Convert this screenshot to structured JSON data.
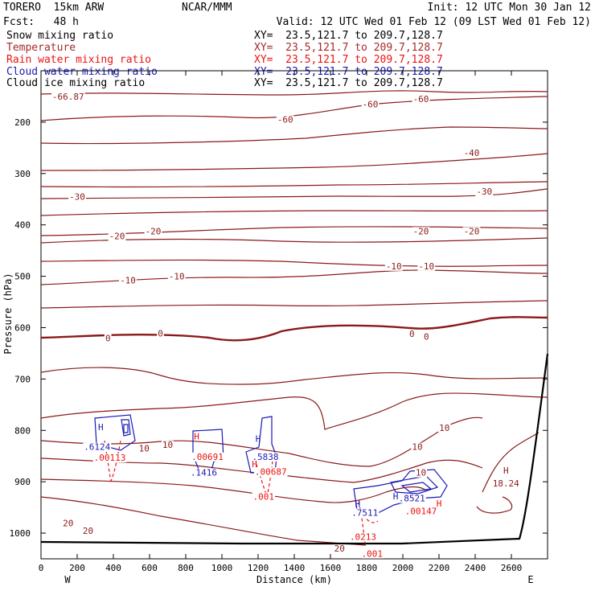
{
  "header": {
    "model": "TORERO  15km ARW",
    "center": "NCAR/MMM",
    "init": "Init: 12 UTC Mon 30 Jan 12",
    "fcst": "Fcst:   48 h",
    "valid": "Valid: 12 UTC Wed 01 Feb 12 (09 LST Wed 01 Feb 12)"
  },
  "fields": [
    {
      "label": "Snow mixing ratio",
      "xy": "XY=  23.5,121.7 to 209.7,128.7",
      "color": "#000000"
    },
    {
      "label": "Temperature",
      "xy": "XY=  23.5,121.7 to 209.7,128.7",
      "color": "#a52a2a"
    },
    {
      "label": "Rain water mixing ratio",
      "xy": "XY=  23.5,121.7 to 209.7,128.7",
      "color": "#ee1111"
    },
    {
      "label": "Cloud water mixing ratio",
      "xy": "XY=  23.5,121.7 to 209.7,128.7",
      "color": "#1a1ab4"
    },
    {
      "label": "Cloud ice mixing ratio",
      "xy": "XY=  23.5,121.7 to 209.7,128.7",
      "color": "#000000"
    }
  ],
  "chart_data": {
    "type": "contour",
    "xlabel": "Distance (km)",
    "ylabel": "Pressure (hPa)",
    "xlim": [
      0,
      2800
    ],
    "ylim": [
      1050,
      100
    ],
    "x_ticks": [
      0,
      200,
      400,
      600,
      800,
      1000,
      1200,
      1400,
      1600,
      1800,
      2000,
      2200,
      2400,
      2600
    ],
    "y_ticks": [
      200,
      300,
      400,
      500,
      600,
      700,
      800,
      900,
      1000
    ],
    "x_end_labels": {
      "left": "W",
      "right": "E"
    },
    "colors": {
      "temperature": "#8b1a1a",
      "rain": "#ee1111",
      "cloud_water": "#1a1ab4",
      "terrain": "#000000"
    },
    "temperature_contour_labels": [
      {
        "value": "-66.87",
        "x": 150,
        "p": 150
      },
      {
        "value": "-60",
        "x": 1350,
        "p": 195
      },
      {
        "value": "-60",
        "x": 1820,
        "p": 165
      },
      {
        "value": "-60",
        "x": 2100,
        "p": 155
      },
      {
        "value": "-40",
        "x": 2380,
        "p": 260
      },
      {
        "value": "-30",
        "x": 200,
        "p": 345
      },
      {
        "value": "-30",
        "x": 2450,
        "p": 335
      },
      {
        "value": "-20",
        "x": 420,
        "p": 422
      },
      {
        "value": "-20",
        "x": 620,
        "p": 412
      },
      {
        "value": "-20",
        "x": 2100,
        "p": 412
      },
      {
        "value": "-20",
        "x": 2380,
        "p": 412
      },
      {
        "value": "-10",
        "x": 480,
        "p": 508
      },
      {
        "value": "-10",
        "x": 750,
        "p": 500
      },
      {
        "value": "-10",
        "x": 1950,
        "p": 480
      },
      {
        "value": "-10",
        "x": 2130,
        "p": 480
      },
      {
        "value": "0",
        "x": 370,
        "p": 620
      },
      {
        "value": "0",
        "x": 660,
        "p": 611
      },
      {
        "value": "0",
        "x": 2050,
        "p": 612
      },
      {
        "value": "0",
        "x": 2130,
        "p": 617
      },
      {
        "value": "10",
        "x": 570,
        "p": 835
      },
      {
        "value": "10",
        "x": 700,
        "p": 828
      },
      {
        "value": "10",
        "x": 2080,
        "p": 832
      },
      {
        "value": "10",
        "x": 2230,
        "p": 795
      },
      {
        "value": "10",
        "x": 2100,
        "p": 882
      },
      {
        "value": "20",
        "x": 150,
        "p": 980
      },
      {
        "value": "20",
        "x": 260,
        "p": 995
      },
      {
        "value": "20",
        "x": 1650,
        "p": 1030
      }
    ],
    "max_labels": [
      {
        "marker": "H",
        "value": "18.24",
        "x": 2570,
        "p": 897,
        "color": "#8b1a1a"
      }
    ],
    "cloud_water_labels": [
      {
        "value": ".6124",
        "x": 310,
        "p": 832
      },
      {
        "value": ".1416",
        "x": 900,
        "p": 882
      },
      {
        "value": ".5838",
        "x": 1240,
        "p": 851
      },
      {
        "value": ".7511",
        "x": 1790,
        "p": 960
      },
      {
        "value": ".8521",
        "x": 2050,
        "p": 932
      }
    ],
    "rain_labels": [
      {
        "value": ".00113",
        "x": 380,
        "p": 853
      },
      {
        "value": ".00691",
        "x": 920,
        "p": 851
      },
      {
        "value": ".00687",
        "x": 1270,
        "p": 880
      },
      {
        "value": ".001",
        "x": 1230,
        "p": 929
      },
      {
        "value": ".00147",
        "x": 2100,
        "p": 957
      },
      {
        "value": ".0213",
        "x": 1780,
        "p": 1007
      },
      {
        "value": ".001",
        "x": 1830,
        "p": 1040
      }
    ],
    "h_markers": [
      {
        "x": 330,
        "p": 793,
        "color": "#1a1ab4"
      },
      {
        "x": 860,
        "p": 811,
        "color": "#ee1111"
      },
      {
        "x": 1200,
        "p": 816,
        "color": "#1a1ab4"
      },
      {
        "x": 1180,
        "p": 865,
        "color": "#ee1111"
      },
      {
        "x": 1750,
        "p": 943,
        "color": "#1a1ab4"
      },
      {
        "x": 1960,
        "p": 928,
        "color": "#1a1ab4"
      },
      {
        "x": 2200,
        "p": 942,
        "color": "#ee1111"
      }
    ]
  }
}
